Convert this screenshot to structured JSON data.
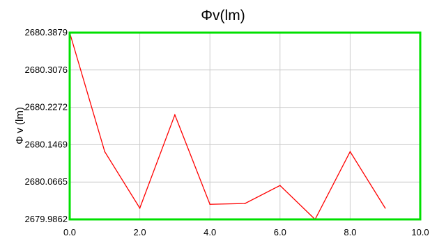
{
  "chart_data": {
    "type": "line",
    "title": "Φv(lm)",
    "ylabel": "Φ v (lm)",
    "xlabel": "",
    "xlim": [
      0,
      10
    ],
    "ylim": [
      2679.9862,
      2680.3879
    ],
    "x_ticks": [
      {
        "value": 0,
        "label": "0.0"
      },
      {
        "value": 2,
        "label": "2.0"
      },
      {
        "value": 4,
        "label": "4.0"
      },
      {
        "value": 6,
        "label": "6.0"
      },
      {
        "value": 8,
        "label": "8.0"
      },
      {
        "value": 10,
        "label": "10.0"
      }
    ],
    "y_ticks": [
      {
        "value": 2679.9862,
        "label": "2679.9862"
      },
      {
        "value": 2680.0665,
        "label": "2680.0665"
      },
      {
        "value": 2680.1469,
        "label": "2680.1469"
      },
      {
        "value": 2680.2272,
        "label": "2680.2272"
      },
      {
        "value": 2680.3076,
        "label": "2680.3076"
      },
      {
        "value": 2680.3879,
        "label": "2680.3879"
      }
    ],
    "grid": true,
    "colors": {
      "plot_border": "#00e000",
      "grid": "#cccccc",
      "line": "#ff0000"
    },
    "series": [
      {
        "x": [
          0,
          1,
          2,
          3,
          4,
          5,
          6,
          7,
          8,
          9
        ],
        "y": [
          2680.3879,
          2680.1318,
          2680.0105,
          2680.2111,
          2680.0187,
          2680.0204,
          2680.0592,
          2679.9862,
          2680.1318,
          2680.0105
        ]
      }
    ]
  }
}
